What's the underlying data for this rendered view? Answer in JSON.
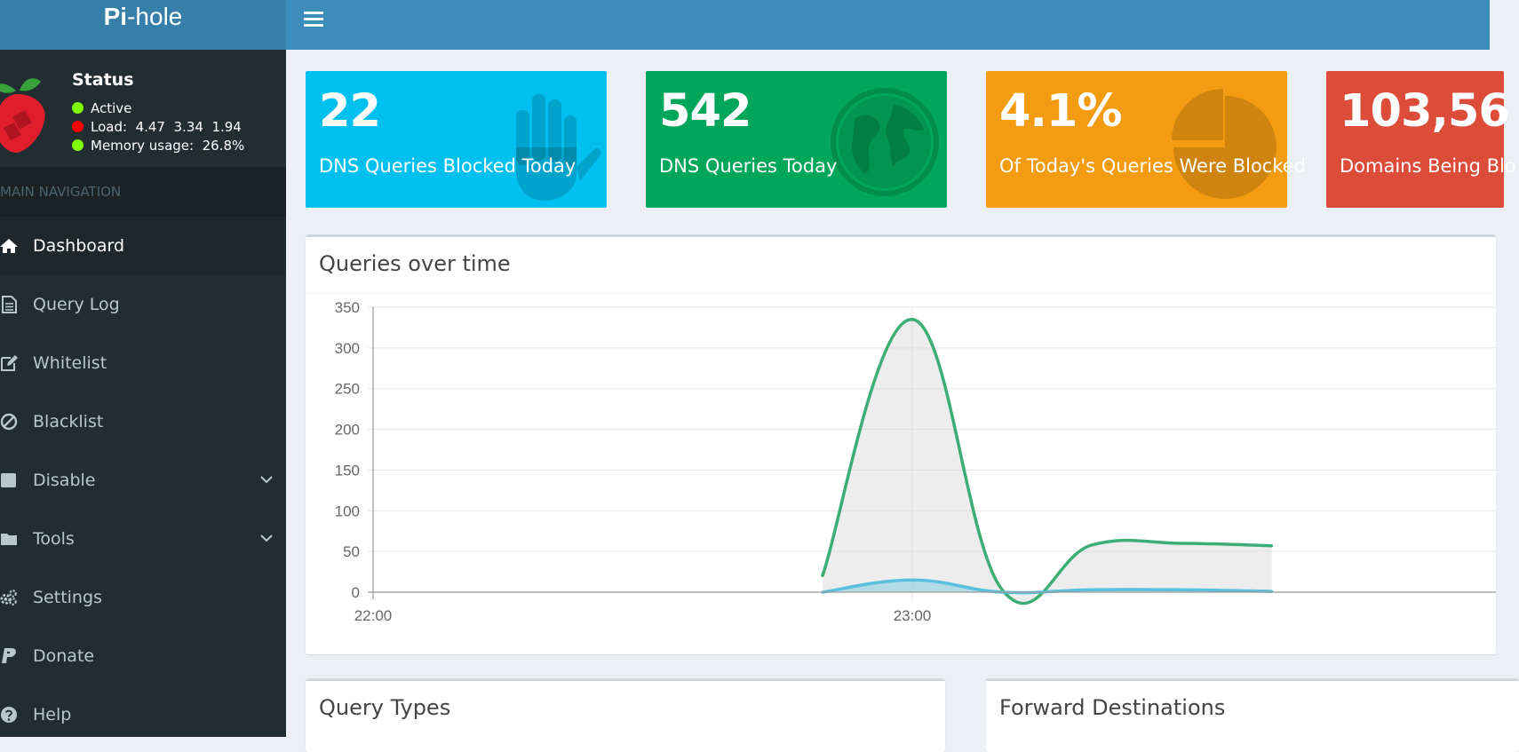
{
  "brand": {
    "bold": "Pi",
    "rest": "-hole"
  },
  "status": {
    "title": "Status",
    "active": "Active",
    "load": "Load:  4.47  3.34  1.94",
    "memory": "Memory usage:  26.8%"
  },
  "nav_header": "MAIN NAVIGATION",
  "nav": {
    "dashboard": "Dashboard",
    "query_log": "Query Log",
    "whitelist": "Whitelist",
    "blacklist": "Blacklist",
    "disable": "Disable",
    "tools": "Tools",
    "settings": "Settings",
    "donate": "Donate",
    "help": "Help"
  },
  "stats": {
    "blocked": {
      "number": "22",
      "label": "DNS Queries Blocked Today",
      "color": "#00c0ef",
      "icon": "hand-icon"
    },
    "total": {
      "number": "542",
      "label": "DNS Queries Today",
      "color": "#00a65a",
      "icon": "globe-icon"
    },
    "percent": {
      "number": "4.1%",
      "label": "Of Today's Queries Were Blocked",
      "color": "#f39c12",
      "icon": "pie-chart-icon"
    },
    "domains": {
      "number": "103,56",
      "label": "Domains Being Blo",
      "color": "#dd4b39"
    }
  },
  "panels": {
    "queries_over_time": "Queries over time",
    "query_types": "Query Types",
    "forward_destinations": "Forward Destinations"
  },
  "chart_data": {
    "type": "area",
    "title": "Queries over time",
    "y_ticks": [
      "350",
      "300",
      "250",
      "200",
      "150",
      "100",
      "50",
      "0"
    ],
    "x_ticks": [
      "22:00",
      "23:00"
    ],
    "ylim": [
      0,
      350
    ],
    "grid": true,
    "series": [
      {
        "name": "",
        "color": "#3cae73",
        "x": [
          "22:50",
          "23:00",
          "23:10",
          "23:20",
          "23:30",
          "23:40"
        ],
        "values": [
          20,
          335,
          3,
          58,
          60,
          57
        ]
      },
      {
        "name": "",
        "color": "#5bc0de",
        "x": [
          "22:50",
          "23:00",
          "23:10",
          "23:20",
          "23:30",
          "23:40"
        ],
        "values": [
          0,
          15,
          0,
          3,
          3,
          1
        ]
      }
    ]
  }
}
